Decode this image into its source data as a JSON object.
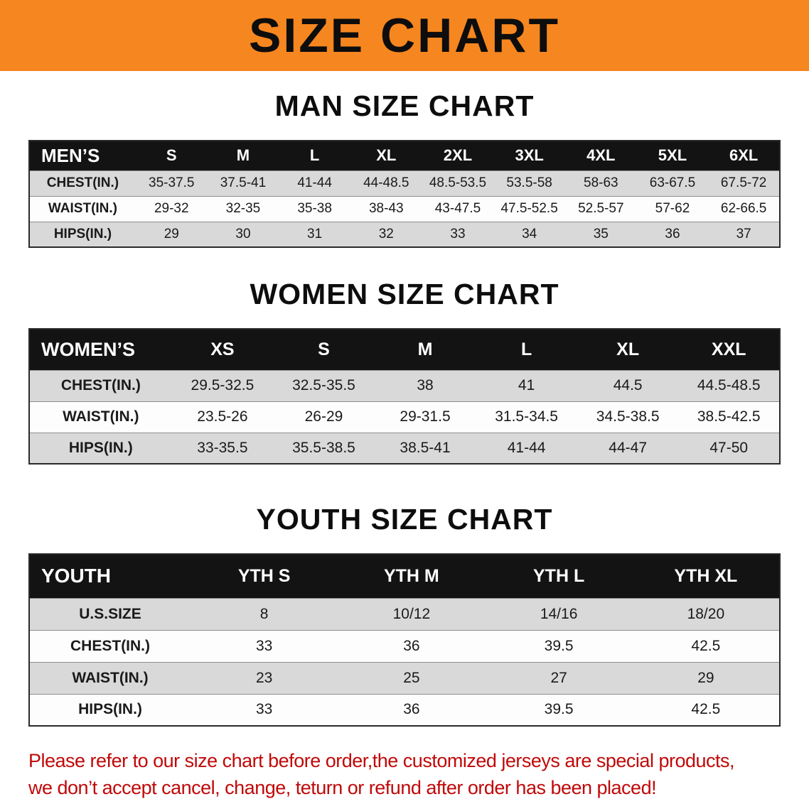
{
  "banner": {
    "title": "SIZE CHART"
  },
  "sections": [
    {
      "heading": "MAN SIZE CHART",
      "table": {
        "header": [
          "MEN’S",
          "S",
          "M",
          "L",
          "XL",
          "2XL",
          "3XL",
          "4XL",
          "5XL",
          "6XL"
        ],
        "rows": [
          [
            "CHEST(IN.)",
            "35-37.5",
            "37.5-41",
            "41-44",
            "44-48.5",
            "48.5-53.5",
            "53.5-58",
            "58-63",
            "63-67.5",
            "67.5-72"
          ],
          [
            "WAIST(IN.)",
            "29-32",
            "32-35",
            "35-38",
            "38-43",
            "43-47.5",
            "47.5-52.5",
            "52.5-57",
            "57-62",
            "62-66.5"
          ],
          [
            "HIPS(IN.)",
            "29",
            "30",
            "31",
            "32",
            "33",
            "34",
            "35",
            "36",
            "37"
          ]
        ]
      }
    },
    {
      "heading": "WOMEN SIZE CHART",
      "table": {
        "header": [
          "WOMEN’S",
          "XS",
          "S",
          "M",
          "L",
          "XL",
          "XXL"
        ],
        "rows": [
          [
            "CHEST(IN.)",
            "29.5-32.5",
            "32.5-35.5",
            "38",
            "41",
            "44.5",
            "44.5-48.5"
          ],
          [
            "WAIST(IN.)",
            "23.5-26",
            "26-29",
            "29-31.5",
            "31.5-34.5",
            "34.5-38.5",
            "38.5-42.5"
          ],
          [
            "HIPS(IN.)",
            "33-35.5",
            "35.5-38.5",
            "38.5-41",
            "41-44",
            "44-47",
            "47-50"
          ]
        ]
      }
    },
    {
      "heading": "YOUTH SIZE CHART",
      "table": {
        "header": [
          "YOUTH",
          "YTH S",
          "YTH M",
          "YTH L",
          "YTH XL"
        ],
        "rows": [
          [
            "U.S.SIZE",
            "8",
            "10/12",
            "14/16",
            "18/20"
          ],
          [
            "CHEST(IN.)",
            "33",
            "36",
            "39.5",
            "42.5"
          ],
          [
            "WAIST(IN.)",
            "23",
            "25",
            "27",
            "29"
          ],
          [
            "HIPS(IN.)",
            "33",
            "36",
            "39.5",
            "42.5"
          ]
        ]
      }
    }
  ],
  "disclaimer": {
    "lines": [
      "Please refer to our size chart before order,the customized jerseys are special products,",
      "we don’t accept cancel, change, teturn or refund after order has been placed!"
    ]
  },
  "colors": {
    "banner_orange": "#f6861f",
    "table_header_black": "#131313",
    "row_stripe_gray": "#d9d9d9",
    "disclaimer_red": "#c00909"
  }
}
